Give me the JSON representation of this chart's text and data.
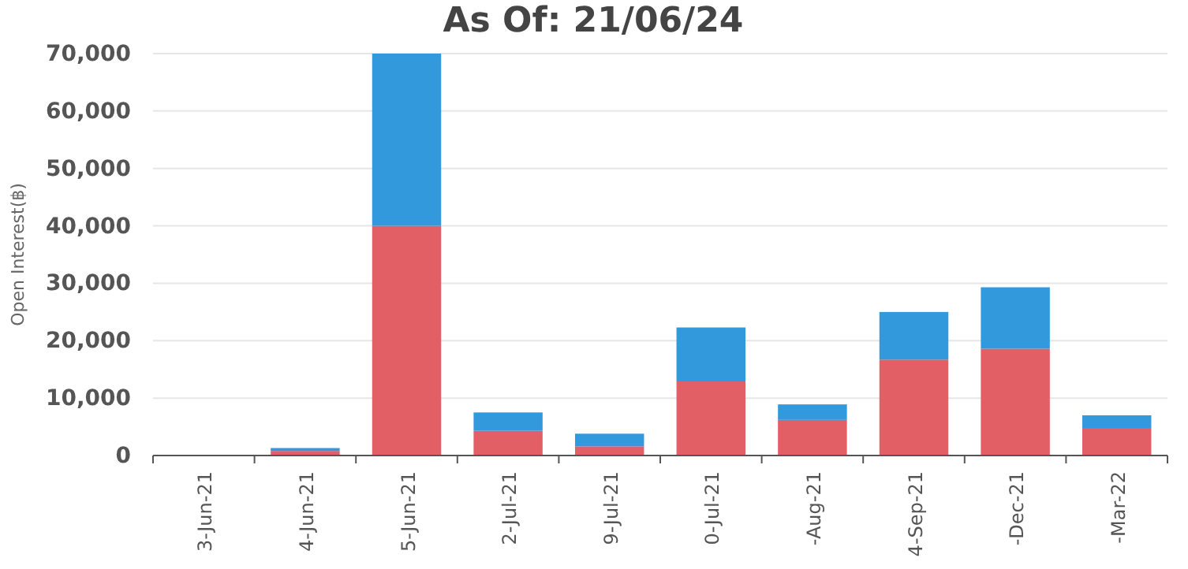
{
  "chart_data": {
    "type": "bar",
    "title": "As Of: 21/06/24",
    "ylabel": "Open Interest(฿)",
    "categories": [
      "3-Jun-21",
      "4-Jun-21",
      "5-Jun-21",
      "2-Jul-21",
      "9-Jul-21",
      "0-Jul-21",
      "-Aug-21",
      "4-Sep-21",
      "-Dec-21",
      "-Mar-22"
    ],
    "stacked": true,
    "series": [
      {
        "color": "#e25f66",
        "values": [
          0,
          800,
          40000,
          4300,
          1600,
          12900,
          6200,
          16700,
          18600,
          4800
        ]
      },
      {
        "color": "#3399dd",
        "values": [
          0,
          500,
          30000,
          3200,
          2200,
          9400,
          2700,
          8300,
          10700,
          2200
        ]
      }
    ],
    "ylim": [
      0,
      70000
    ],
    "yticks": [
      {
        "value": 0,
        "label": "0"
      },
      {
        "value": 10000,
        "label": "10,000"
      },
      {
        "value": 20000,
        "label": "20,000"
      },
      {
        "value": 30000,
        "label": "30,000"
      },
      {
        "value": 40000,
        "label": "40,000"
      },
      {
        "value": 50000,
        "label": "50,000"
      },
      {
        "value": 60000,
        "label": "60,000"
      },
      {
        "value": 70000,
        "label": "70,000"
      }
    ],
    "grid": "y"
  }
}
